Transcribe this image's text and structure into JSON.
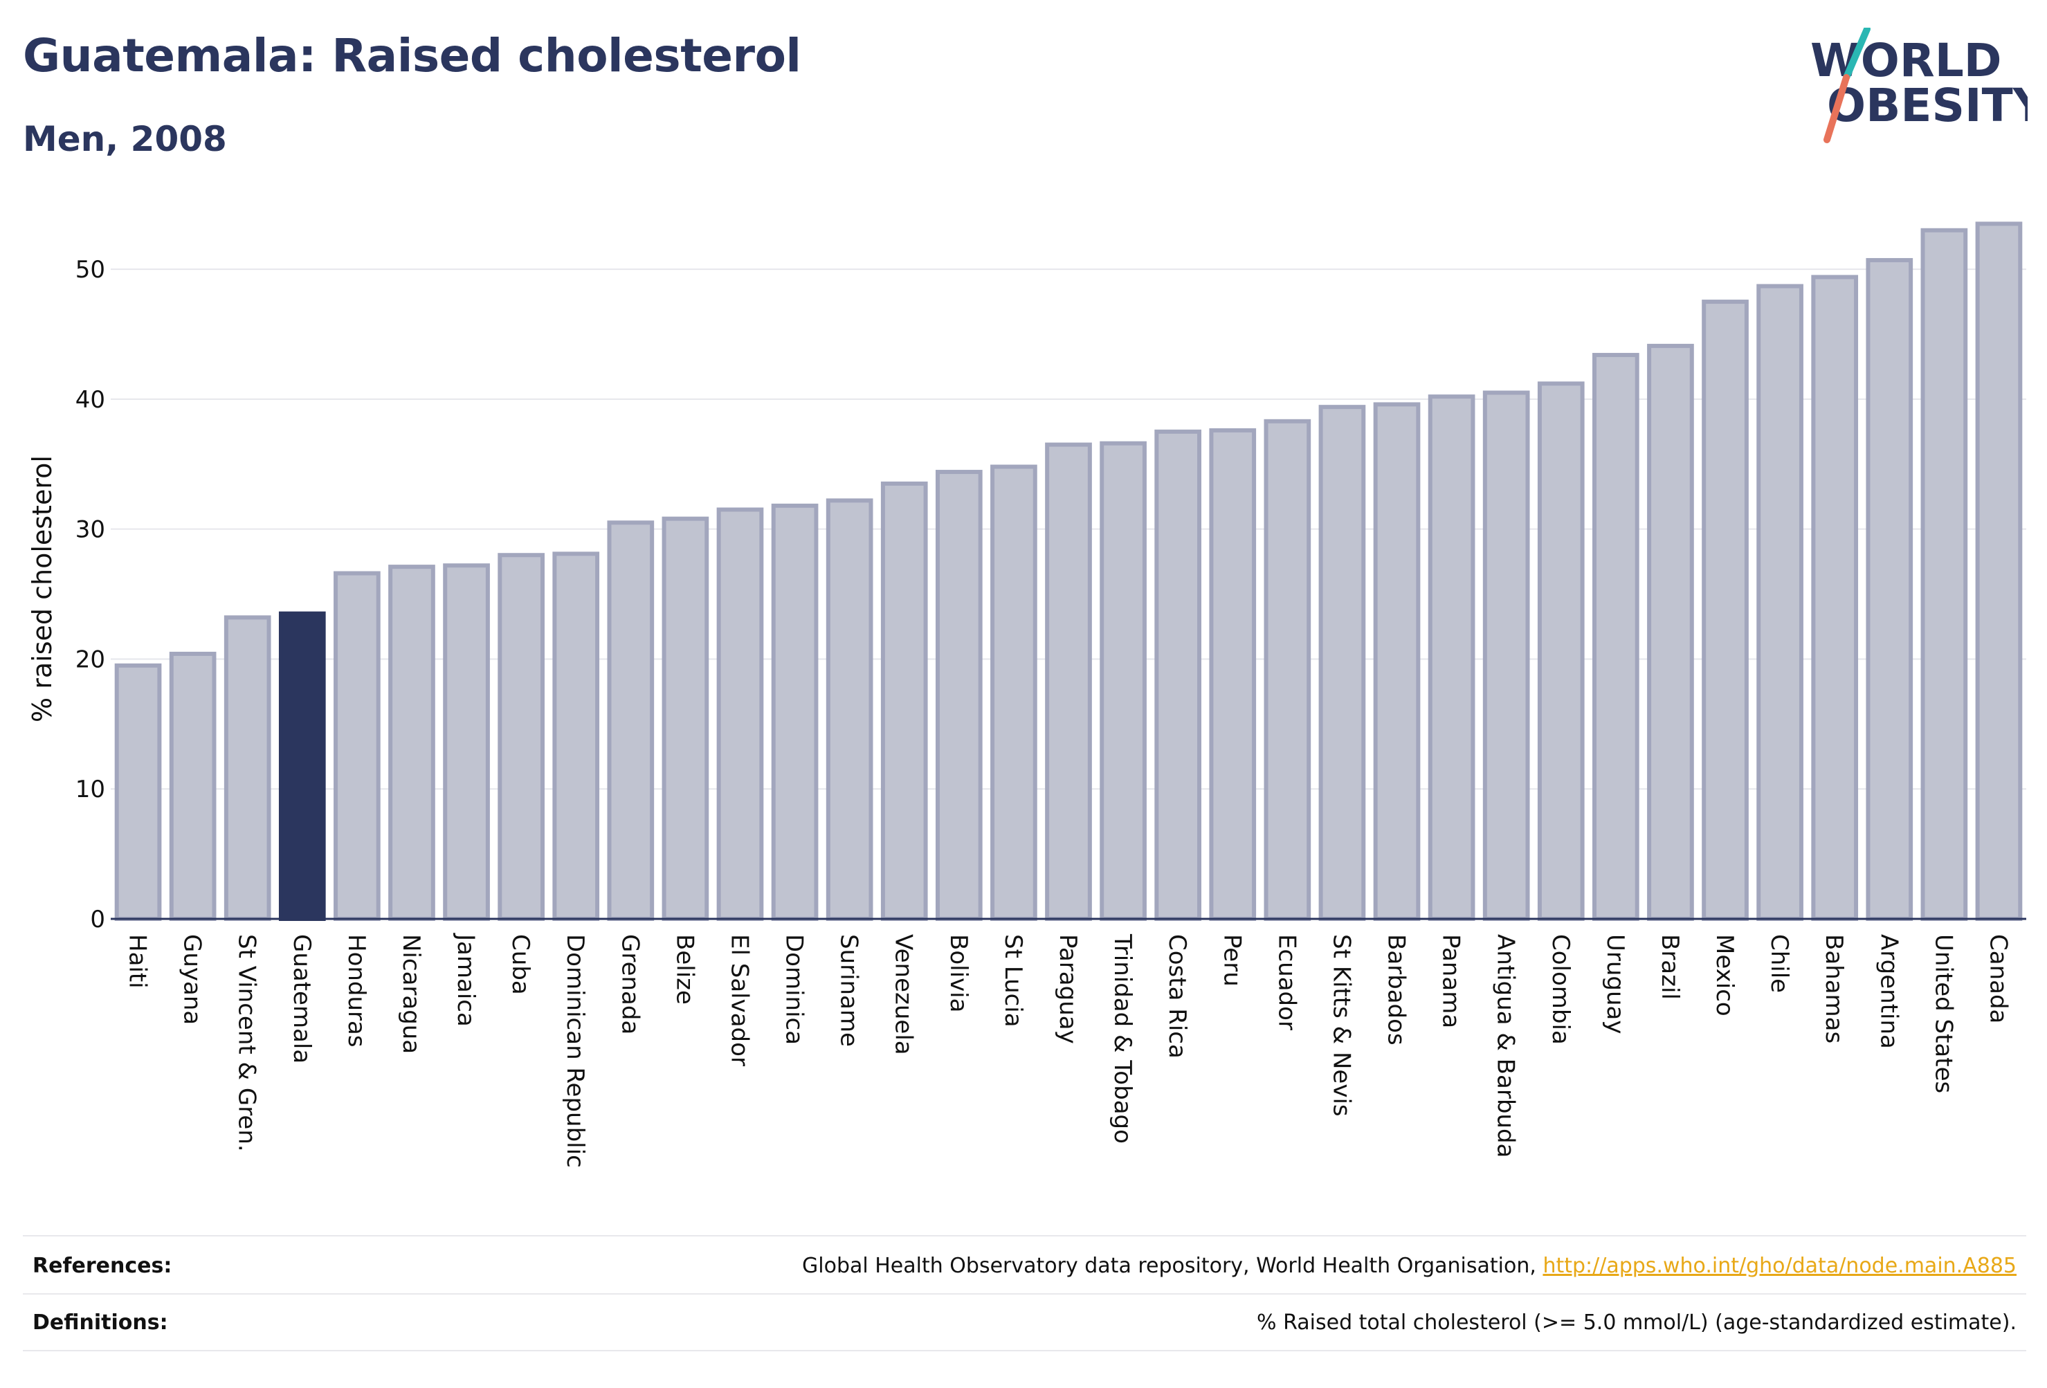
{
  "header": {
    "title": "Guatemala: Raised cholesterol",
    "subtitle": "Men, 2008"
  },
  "logo": {
    "line1": "WORLD",
    "line2": "OBESITY",
    "colors": {
      "text": "#2b365e",
      "slash_top": "#2ab7b3",
      "slash_bottom": "#e8735a"
    }
  },
  "footer": {
    "references_label": "References:",
    "references_text": "Global Health Observatory data repository, World Health Organisation, ",
    "references_link": "http://apps.who.int/gho/data/node.main.A885",
    "definitions_label": "Definitions:",
    "definitions_text": "% Raised total cholesterol (>= 5.0 mmol/L) (age-standardized estimate)."
  },
  "colors": {
    "bar_fill": "#c0c3d0",
    "bar_stroke": "#a2a6bd",
    "highlight": "#2b365e",
    "grid": "#e6e7ec",
    "axis": "#2b365e"
  },
  "chart_data": {
    "type": "bar",
    "title": "Guatemala: Raised cholesterol",
    "subtitle": "Men, 2008",
    "ylabel": "% raised cholesterol",
    "xlabel": "",
    "ylim": [
      0,
      54
    ],
    "yticks": [
      0,
      10,
      20,
      30,
      40,
      50
    ],
    "grid": true,
    "highlight": "Guatemala",
    "categories": [
      "Haiti",
      "Guyana",
      "St Vincent & Gren.",
      "Guatemala",
      "Honduras",
      "Nicaragua",
      "Jamaica",
      "Cuba",
      "Dominican Republic",
      "Grenada",
      "Belize",
      "El Salvador",
      "Dominica",
      "Suriname",
      "Venezuela",
      "Bolivia",
      "St Lucia",
      "Paraguay",
      "Trinidad & Tobago",
      "Costa Rica",
      "Peru",
      "Ecuador",
      "St Kitts & Nevis",
      "Barbados",
      "Panama",
      "Antigua & Barbuda",
      "Colombia",
      "Uruguay",
      "Brazil",
      "Mexico",
      "Chile",
      "Bahamas",
      "Argentina",
      "United States",
      "Canada"
    ],
    "values": [
      19.5,
      20.4,
      23.2,
      23.5,
      26.6,
      27.1,
      27.2,
      28.0,
      28.1,
      30.5,
      30.8,
      31.5,
      31.8,
      32.2,
      33.5,
      34.4,
      34.8,
      36.5,
      36.6,
      37.5,
      37.6,
      38.3,
      39.4,
      39.6,
      40.2,
      40.5,
      41.2,
      43.4,
      44.1,
      47.5,
      48.7,
      49.4,
      50.7,
      53.0,
      53.5
    ]
  }
}
